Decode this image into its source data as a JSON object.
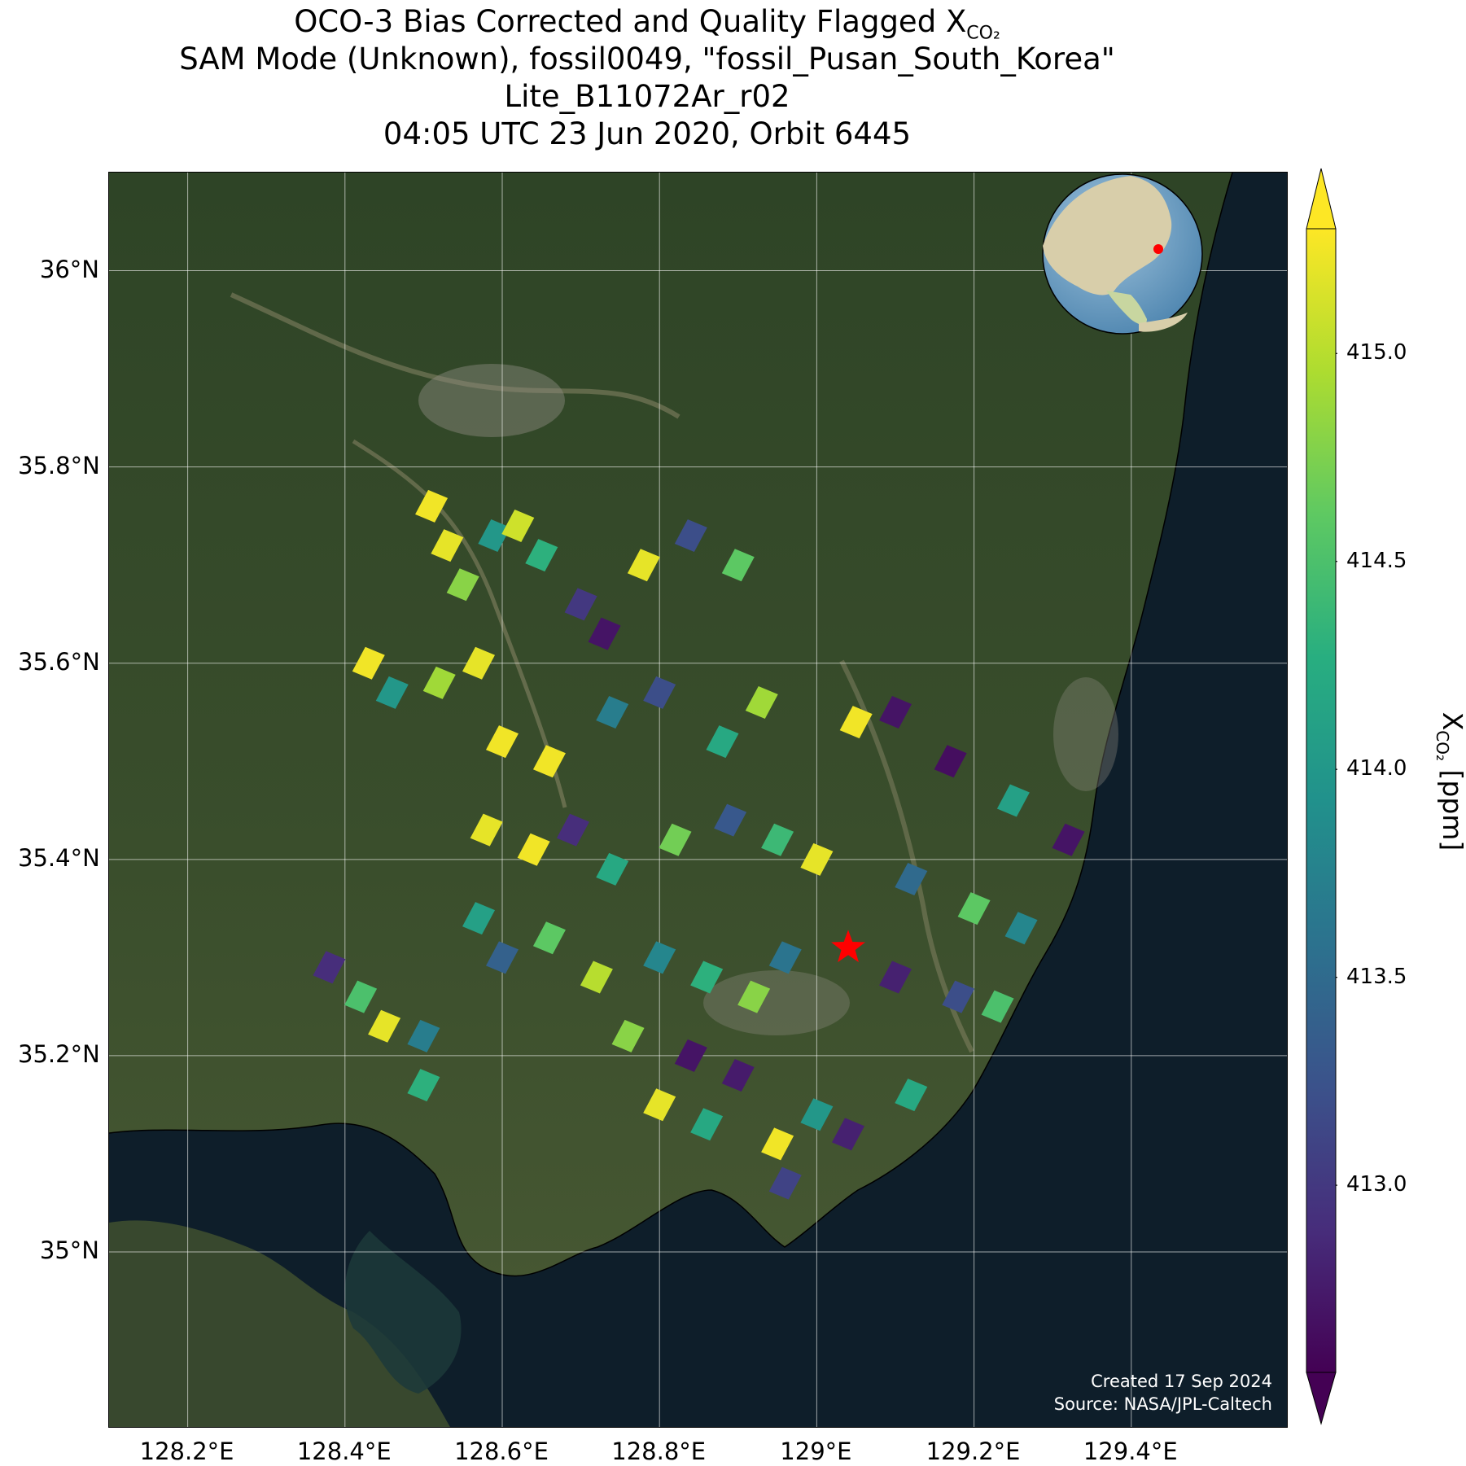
{
  "title": {
    "line1_prefix": "OCO-3 Bias Corrected and Quality Flagged X",
    "line1_sub": "CO₂",
    "line2": "SAM Mode (Unknown), fossil0049, \"fossil_Pusan_South_Korea\"",
    "line3": "Lite_B11072Ar_r02",
    "line4": "04:05 UTC 23 Jun 2020, Orbit 6445"
  },
  "axes": {
    "lat_ticks": [
      "36°N",
      "35.8°N",
      "35.6°N",
      "35.4°N",
      "35.2°N",
      "35°N"
    ],
    "lat_values": [
      36.0,
      35.8,
      35.6,
      35.4,
      35.2,
      35.0
    ],
    "lon_ticks": [
      "128.2°E",
      "128.4°E",
      "128.6°E",
      "128.8°E",
      "129°E",
      "129.2°E",
      "129.4°E"
    ],
    "lon_values": [
      128.2,
      128.4,
      128.6,
      128.8,
      129.0,
      129.2,
      129.4
    ],
    "lon_range": [
      128.1,
      129.6
    ],
    "lat_range": [
      34.82,
      36.1
    ],
    "grid": true
  },
  "colorbar": {
    "label_prefix": "X",
    "label_sub": "CO₂",
    "label_suffix": " [ppm]",
    "ticks": [
      "415.0",
      "414.5",
      "414.0",
      "413.5",
      "413.0"
    ],
    "tick_values": [
      415.0,
      414.5,
      414.0,
      413.5,
      413.0
    ],
    "range": [
      412.55,
      415.3
    ],
    "colormap": "viridis",
    "extend": "both"
  },
  "target": {
    "name": "fossil_Pusan_South_Korea",
    "lon": 129.04,
    "lat": 35.31,
    "color": "#ff0000"
  },
  "credit": {
    "line1": "Created 17 Sep 2024",
    "line2": "Source: NASA/JPL-Caltech"
  },
  "inset_globe": {
    "marker_color": "#ff0000"
  },
  "chart_data": {
    "type": "scatter",
    "xlabel": "",
    "ylabel": "",
    "note_values": "approximate XCO2 soundings (ppm) read from the map",
    "soundings": [
      {
        "lon": 128.51,
        "lat": 35.76,
        "xco2": 415.25
      },
      {
        "lon": 128.53,
        "lat": 35.72,
        "xco2": 415.2
      },
      {
        "lon": 128.55,
        "lat": 35.68,
        "xco2": 414.8
      },
      {
        "lon": 128.59,
        "lat": 35.73,
        "xco2": 414.0
      },
      {
        "lon": 128.62,
        "lat": 35.74,
        "xco2": 415.1
      },
      {
        "lon": 128.65,
        "lat": 35.71,
        "xco2": 414.3
      },
      {
        "lon": 128.7,
        "lat": 35.66,
        "xco2": 413.0
      },
      {
        "lon": 128.73,
        "lat": 35.63,
        "xco2": 412.7
      },
      {
        "lon": 128.78,
        "lat": 35.7,
        "xco2": 415.2
      },
      {
        "lon": 128.84,
        "lat": 35.73,
        "xco2": 413.2
      },
      {
        "lon": 128.9,
        "lat": 35.7,
        "xco2": 414.6
      },
      {
        "lon": 128.43,
        "lat": 35.6,
        "xco2": 415.25
      },
      {
        "lon": 128.46,
        "lat": 35.57,
        "xco2": 414.0
      },
      {
        "lon": 128.52,
        "lat": 35.58,
        "xco2": 414.9
      },
      {
        "lon": 128.57,
        "lat": 35.6,
        "xco2": 415.2
      },
      {
        "lon": 128.6,
        "lat": 35.52,
        "xco2": 415.25
      },
      {
        "lon": 128.66,
        "lat": 35.5,
        "xco2": 415.25
      },
      {
        "lon": 128.74,
        "lat": 35.55,
        "xco2": 413.7
      },
      {
        "lon": 128.8,
        "lat": 35.57,
        "xco2": 413.2
      },
      {
        "lon": 128.88,
        "lat": 35.52,
        "xco2": 414.2
      },
      {
        "lon": 128.93,
        "lat": 35.56,
        "xco2": 414.9
      },
      {
        "lon": 129.05,
        "lat": 35.54,
        "xco2": 415.25
      },
      {
        "lon": 129.1,
        "lat": 35.55,
        "xco2": 412.7
      },
      {
        "lon": 129.17,
        "lat": 35.5,
        "xco2": 412.65
      },
      {
        "lon": 129.25,
        "lat": 35.46,
        "xco2": 414.1
      },
      {
        "lon": 129.32,
        "lat": 35.42,
        "xco2": 412.7
      },
      {
        "lon": 128.58,
        "lat": 35.43,
        "xco2": 415.2
      },
      {
        "lon": 128.64,
        "lat": 35.41,
        "xco2": 415.25
      },
      {
        "lon": 128.69,
        "lat": 35.43,
        "xco2": 412.9
      },
      {
        "lon": 128.74,
        "lat": 35.39,
        "xco2": 414.2
      },
      {
        "lon": 128.82,
        "lat": 35.42,
        "xco2": 414.7
      },
      {
        "lon": 128.89,
        "lat": 35.44,
        "xco2": 413.3
      },
      {
        "lon": 128.95,
        "lat": 35.42,
        "xco2": 414.4
      },
      {
        "lon": 129.0,
        "lat": 35.4,
        "xco2": 415.2
      },
      {
        "lon": 129.12,
        "lat": 35.38,
        "xco2": 413.5
      },
      {
        "lon": 129.2,
        "lat": 35.35,
        "xco2": 414.6
      },
      {
        "lon": 129.26,
        "lat": 35.33,
        "xco2": 413.8
      },
      {
        "lon": 128.57,
        "lat": 35.34,
        "xco2": 414.1
      },
      {
        "lon": 128.6,
        "lat": 35.3,
        "xco2": 413.4
      },
      {
        "lon": 128.66,
        "lat": 35.32,
        "xco2": 414.6
      },
      {
        "lon": 128.72,
        "lat": 35.28,
        "xco2": 415.0
      },
      {
        "lon": 128.8,
        "lat": 35.3,
        "xco2": 413.8
      },
      {
        "lon": 128.86,
        "lat": 35.28,
        "xco2": 414.3
      },
      {
        "lon": 128.92,
        "lat": 35.26,
        "xco2": 414.8
      },
      {
        "lon": 128.96,
        "lat": 35.3,
        "xco2": 413.6
      },
      {
        "lon": 129.1,
        "lat": 35.28,
        "xco2": 412.8
      },
      {
        "lon": 129.18,
        "lat": 35.26,
        "xco2": 413.2
      },
      {
        "lon": 129.23,
        "lat": 35.25,
        "xco2": 414.5
      },
      {
        "lon": 128.38,
        "lat": 35.29,
        "xco2": 412.9
      },
      {
        "lon": 128.42,
        "lat": 35.26,
        "xco2": 414.5
      },
      {
        "lon": 128.45,
        "lat": 35.23,
        "xco2": 415.2
      },
      {
        "lon": 128.5,
        "lat": 35.22,
        "xco2": 413.7
      },
      {
        "lon": 128.5,
        "lat": 35.17,
        "xco2": 414.3
      },
      {
        "lon": 128.76,
        "lat": 35.22,
        "xco2": 414.8
      },
      {
        "lon": 128.84,
        "lat": 35.2,
        "xco2": 412.7
      },
      {
        "lon": 128.9,
        "lat": 35.18,
        "xco2": 412.75
      },
      {
        "lon": 128.8,
        "lat": 35.15,
        "xco2": 415.2
      },
      {
        "lon": 128.86,
        "lat": 35.13,
        "xco2": 414.2
      },
      {
        "lon": 128.95,
        "lat": 35.11,
        "xco2": 415.25
      },
      {
        "lon": 129.0,
        "lat": 35.14,
        "xco2": 414.0
      },
      {
        "lon": 129.04,
        "lat": 35.12,
        "xco2": 412.8
      },
      {
        "lon": 128.96,
        "lat": 35.07,
        "xco2": 413.1
      },
      {
        "lon": 129.12,
        "lat": 35.16,
        "xco2": 414.2
      }
    ]
  }
}
